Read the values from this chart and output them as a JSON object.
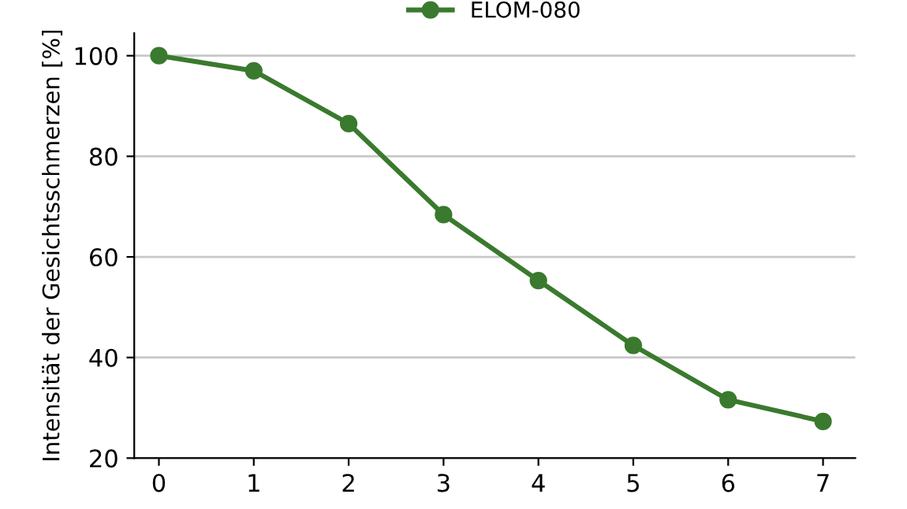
{
  "chart_data": {
    "type": "line",
    "ylabel": "Intensität der Gesichtsschmerzen [%]",
    "x": [
      0,
      1,
      2,
      3,
      4,
      5,
      6,
      7
    ],
    "series": [
      {
        "name": "ELOM-080",
        "color": "#3a7a2e",
        "values": [
          100,
          97,
          86.5,
          68.4,
          55.3,
          42.4,
          31.6,
          27.3
        ]
      }
    ],
    "xlim": [
      -0.26,
      7.34
    ],
    "xticks": [
      0,
      1,
      2,
      3,
      4,
      5,
      6,
      7
    ],
    "ylim": [
      20,
      104.5
    ],
    "yticks": [
      20,
      40,
      60,
      80,
      100
    ],
    "grid": "y",
    "legend": "top",
    "marker": "circle",
    "line_style": "solid"
  }
}
